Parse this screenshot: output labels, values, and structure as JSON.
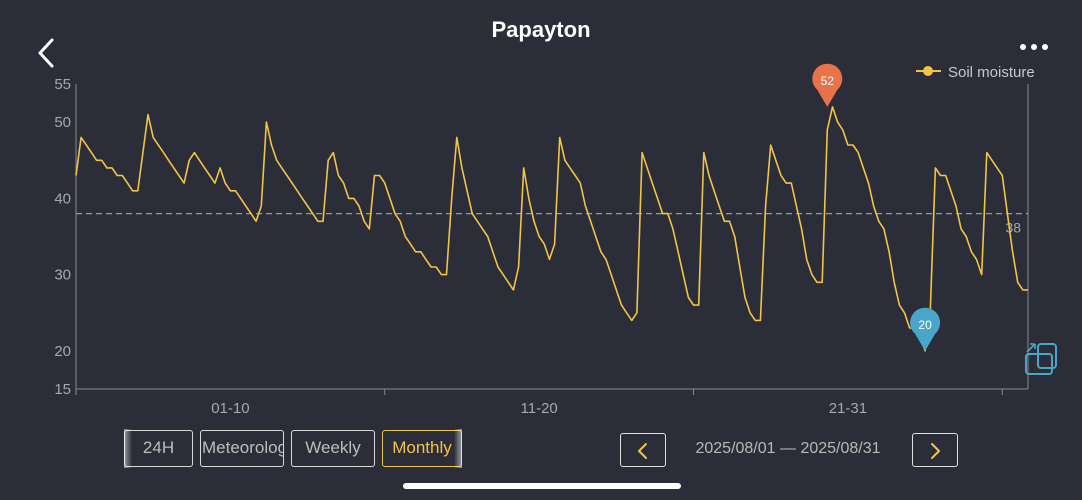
{
  "header": {
    "title": "Papayton"
  },
  "controls": {
    "tabs": [
      {
        "label": "24H",
        "active": false
      },
      {
        "label": "Meteorolog",
        "active": false
      },
      {
        "label": "Weekly",
        "active": false
      },
      {
        "label": "Monthly",
        "active": true
      }
    ],
    "date_range": "2025/08/01 — 2025/08/31"
  },
  "colors": {
    "background": "#2b2e38",
    "series": "#f2c445",
    "max_marker": "#e8734a",
    "min_marker": "#4aa6c9",
    "average_line": "#9a9a9a"
  },
  "chart_data": {
    "type": "line",
    "legend": {
      "placement": "top-right"
    },
    "ylim": [
      15,
      55
    ],
    "yticks": [
      15,
      20,
      30,
      40,
      50,
      55
    ],
    "xlim": [
      0,
      180
    ],
    "xticks": [
      {
        "x": 30,
        "label": "01-10"
      },
      {
        "x": 90,
        "label": "11-20"
      },
      {
        "x": 150,
        "label": "21-31"
      }
    ],
    "average_line": {
      "value": 38,
      "label": "38"
    },
    "max_marker": {
      "x": 146,
      "value": 52,
      "label": "52"
    },
    "min_marker": {
      "x": 165,
      "value": 20,
      "label": "20"
    },
    "series": [
      {
        "name": "Soil moisture",
        "points": [
          [
            0,
            43
          ],
          [
            1,
            48
          ],
          [
            2,
            47
          ],
          [
            3,
            46
          ],
          [
            4,
            45
          ],
          [
            5,
            45
          ],
          [
            6,
            44
          ],
          [
            7,
            44
          ],
          [
            8,
            43
          ],
          [
            9,
            43
          ],
          [
            10,
            42
          ],
          [
            11,
            41
          ],
          [
            12,
            41
          ],
          [
            13,
            46
          ],
          [
            14,
            51
          ],
          [
            15,
            48
          ],
          [
            16,
            47
          ],
          [
            17,
            46
          ],
          [
            18,
            45
          ],
          [
            19,
            44
          ],
          [
            20,
            43
          ],
          [
            21,
            42
          ],
          [
            22,
            45
          ],
          [
            23,
            46
          ],
          [
            24,
            45
          ],
          [
            25,
            44
          ],
          [
            26,
            43
          ],
          [
            27,
            42
          ],
          [
            28,
            44
          ],
          [
            29,
            42
          ],
          [
            30,
            41
          ],
          [
            31,
            41
          ],
          [
            32,
            40
          ],
          [
            33,
            39
          ],
          [
            34,
            38
          ],
          [
            35,
            37
          ],
          [
            36,
            39
          ],
          [
            37,
            50
          ],
          [
            38,
            47
          ],
          [
            39,
            45
          ],
          [
            40,
            44
          ],
          [
            41,
            43
          ],
          [
            42,
            42
          ],
          [
            43,
            41
          ],
          [
            44,
            40
          ],
          [
            45,
            39
          ],
          [
            46,
            38
          ],
          [
            47,
            37
          ],
          [
            48,
            37
          ],
          [
            49,
            45
          ],
          [
            50,
            46
          ],
          [
            51,
            43
          ],
          [
            52,
            42
          ],
          [
            53,
            40
          ],
          [
            54,
            40
          ],
          [
            55,
            39
          ],
          [
            56,
            37
          ],
          [
            57,
            36
          ],
          [
            58,
            43
          ],
          [
            59,
            43
          ],
          [
            60,
            42
          ],
          [
            61,
            40
          ],
          [
            62,
            38
          ],
          [
            63,
            37
          ],
          [
            64,
            35
          ],
          [
            65,
            34
          ],
          [
            66,
            33
          ],
          [
            67,
            33
          ],
          [
            68,
            32
          ],
          [
            69,
            31
          ],
          [
            70,
            31
          ],
          [
            71,
            30
          ],
          [
            72,
            30
          ],
          [
            73,
            40
          ],
          [
            74,
            48
          ],
          [
            75,
            44
          ],
          [
            76,
            41
          ],
          [
            77,
            38
          ],
          [
            78,
            37
          ],
          [
            79,
            36
          ],
          [
            80,
            35
          ],
          [
            81,
            33
          ],
          [
            82,
            31
          ],
          [
            83,
            30
          ],
          [
            84,
            29
          ],
          [
            85,
            28
          ],
          [
            86,
            31
          ],
          [
            87,
            44
          ],
          [
            88,
            40
          ],
          [
            89,
            37
          ],
          [
            90,
            35
          ],
          [
            91,
            34
          ],
          [
            92,
            32
          ],
          [
            93,
            34
          ],
          [
            94,
            48
          ],
          [
            95,
            45
          ],
          [
            96,
            44
          ],
          [
            97,
            43
          ],
          [
            98,
            42
          ],
          [
            99,
            39
          ],
          [
            100,
            37
          ],
          [
            101,
            35
          ],
          [
            102,
            33
          ],
          [
            103,
            32
          ],
          [
            104,
            30
          ],
          [
            105,
            28
          ],
          [
            106,
            26
          ],
          [
            107,
            25
          ],
          [
            108,
            24
          ],
          [
            109,
            25
          ],
          [
            110,
            46
          ],
          [
            111,
            44
          ],
          [
            112,
            42
          ],
          [
            113,
            40
          ],
          [
            114,
            38
          ],
          [
            115,
            38
          ],
          [
            116,
            36
          ],
          [
            117,
            33
          ],
          [
            118,
            30
          ],
          [
            119,
            27
          ],
          [
            120,
            26
          ],
          [
            121,
            26
          ],
          [
            122,
            46
          ],
          [
            123,
            43
          ],
          [
            124,
            41
          ],
          [
            125,
            39
          ],
          [
            126,
            37
          ],
          [
            127,
            37
          ],
          [
            128,
            35
          ],
          [
            129,
            31
          ],
          [
            130,
            27
          ],
          [
            131,
            25
          ],
          [
            132,
            24
          ],
          [
            133,
            24
          ],
          [
            134,
            39
          ],
          [
            135,
            47
          ],
          [
            136,
            45
          ],
          [
            137,
            43
          ],
          [
            138,
            42
          ],
          [
            139,
            42
          ],
          [
            140,
            39
          ],
          [
            141,
            36
          ],
          [
            142,
            32
          ],
          [
            143,
            30
          ],
          [
            144,
            29
          ],
          [
            145,
            29
          ],
          [
            146,
            49
          ],
          [
            147,
            52
          ],
          [
            148,
            50
          ],
          [
            149,
            49
          ],
          [
            150,
            47
          ],
          [
            151,
            47
          ],
          [
            152,
            46
          ],
          [
            153,
            44
          ],
          [
            154,
            42
          ],
          [
            155,
            39
          ],
          [
            156,
            37
          ],
          [
            157,
            36
          ],
          [
            158,
            33
          ],
          [
            159,
            29
          ],
          [
            160,
            26
          ],
          [
            161,
            25
          ],
          [
            162,
            23
          ],
          [
            163,
            23
          ],
          [
            164,
            22
          ],
          [
            165,
            20
          ],
          [
            166,
            25
          ],
          [
            167,
            44
          ],
          [
            168,
            43
          ],
          [
            169,
            43
          ],
          [
            170,
            41
          ],
          [
            171,
            39
          ],
          [
            172,
            36
          ],
          [
            173,
            35
          ],
          [
            174,
            33
          ],
          [
            175,
            32
          ],
          [
            176,
            30
          ],
          [
            177,
            46
          ],
          [
            178,
            45
          ],
          [
            179,
            44
          ],
          [
            180,
            43
          ],
          [
            181,
            38
          ],
          [
            182,
            33
          ],
          [
            183,
            29
          ],
          [
            184,
            28
          ],
          [
            185,
            28
          ]
        ]
      }
    ]
  }
}
